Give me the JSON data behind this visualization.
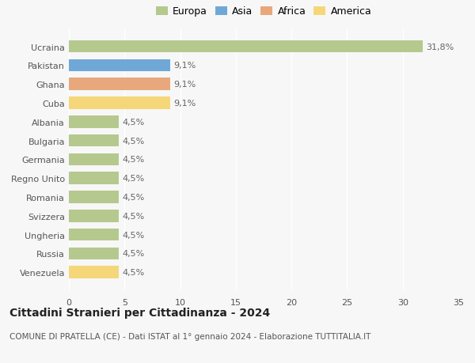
{
  "countries": [
    "Ucraina",
    "Pakistan",
    "Ghana",
    "Cuba",
    "Albania",
    "Bulgaria",
    "Germania",
    "Regno Unito",
    "Romania",
    "Svizzera",
    "Ungheria",
    "Russia",
    "Venezuela"
  ],
  "values": [
    31.8,
    9.1,
    9.1,
    9.1,
    4.5,
    4.5,
    4.5,
    4.5,
    4.5,
    4.5,
    4.5,
    4.5,
    4.5
  ],
  "labels": [
    "31,8%",
    "9,1%",
    "9,1%",
    "9,1%",
    "4,5%",
    "4,5%",
    "4,5%",
    "4,5%",
    "4,5%",
    "4,5%",
    "4,5%",
    "4,5%",
    "4,5%"
  ],
  "colors": [
    "#b5c98e",
    "#6fa8d6",
    "#e8a87c",
    "#f5d77a",
    "#b5c98e",
    "#b5c98e",
    "#b5c98e",
    "#b5c98e",
    "#b5c98e",
    "#b5c98e",
    "#b5c98e",
    "#b5c98e",
    "#f5d77a"
  ],
  "legend_labels": [
    "Europa",
    "Asia",
    "Africa",
    "America"
  ],
  "legend_colors": [
    "#b5c98e",
    "#6fa8d6",
    "#e8a87c",
    "#f5d77a"
  ],
  "title": "Cittadini Stranieri per Cittadinanza - 2024",
  "subtitle": "COMUNE DI PRATELLA (CE) - Dati ISTAT al 1° gennaio 2024 - Elaborazione TUTTITALIA.IT",
  "xlim": [
    0,
    35
  ],
  "xticks": [
    0,
    5,
    10,
    15,
    20,
    25,
    30,
    35
  ],
  "background_color": "#f7f7f7",
  "grid_color": "#ffffff",
  "title_fontsize": 10,
  "subtitle_fontsize": 7.5,
  "label_fontsize": 8,
  "tick_fontsize": 8,
  "legend_fontsize": 9
}
